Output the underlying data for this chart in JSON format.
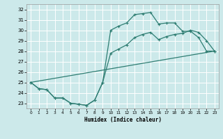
{
  "title": "",
  "xlabel": "Humidex (Indice chaleur)",
  "xlim": [
    -0.5,
    23.5
  ],
  "ylim": [
    22.5,
    32.5
  ],
  "yticks": [
    23,
    24,
    25,
    26,
    27,
    28,
    29,
    30,
    31,
    32
  ],
  "xticks": [
    0,
    1,
    2,
    3,
    4,
    5,
    6,
    7,
    8,
    9,
    10,
    11,
    12,
    13,
    14,
    15,
    16,
    17,
    18,
    19,
    20,
    21,
    22,
    23
  ],
  "bg_color": "#cce9ea",
  "grid_color": "#ffffff",
  "line_color": "#2e7d72",
  "line1_x": [
    0,
    1,
    2,
    3,
    4,
    5,
    6,
    7,
    8,
    9,
    10,
    11,
    12,
    13,
    14,
    15,
    16,
    17,
    18,
    19,
    20,
    21,
    22,
    23
  ],
  "line1_y": [
    25.0,
    24.4,
    24.3,
    23.5,
    23.5,
    23.0,
    22.9,
    22.8,
    23.3,
    25.0,
    30.0,
    30.4,
    30.7,
    31.5,
    31.6,
    31.7,
    30.6,
    30.7,
    30.7,
    29.9,
    29.9,
    29.3,
    28.0,
    28.0
  ],
  "line2_x": [
    0,
    1,
    2,
    3,
    4,
    5,
    6,
    7,
    8,
    9,
    10,
    11,
    12,
    13,
    14,
    15,
    16,
    17,
    18,
    19,
    20,
    21,
    22,
    23
  ],
  "line2_y": [
    25.0,
    24.4,
    24.3,
    23.5,
    23.5,
    23.0,
    22.9,
    22.8,
    23.3,
    25.0,
    27.8,
    28.2,
    28.6,
    29.3,
    29.6,
    29.8,
    29.1,
    29.4,
    29.6,
    29.7,
    30.0,
    29.8,
    29.0,
    28.0
  ],
  "line3_x": [
    0,
    23
  ],
  "line3_y": [
    25.0,
    28.0
  ]
}
